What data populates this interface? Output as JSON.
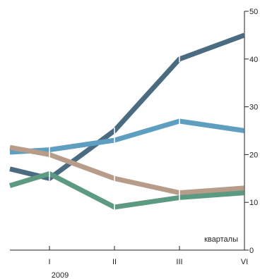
{
  "chart_data": {
    "type": "line",
    "x_categories": [
      "",
      "I",
      "II",
      "III",
      "VI"
    ],
    "x_year_label": "2009",
    "x_unit_label": "кварталы",
    "ylim": [
      0,
      50
    ],
    "y_ticks": [
      0,
      10,
      20,
      30,
      40,
      50
    ],
    "y_axis_position": "right",
    "grid": false,
    "legend": "none",
    "series": [
      {
        "color": "#4a6b80",
        "values": [
          17,
          15,
          25,
          40,
          45
        ]
      },
      {
        "color": "#5e9ec0",
        "values": [
          20.5,
          21,
          23,
          27,
          25
        ]
      },
      {
        "color": "#b89c8a",
        "values": [
          21.5,
          20,
          15,
          12,
          13
        ]
      },
      {
        "color": "#5d9a82",
        "values": [
          13.5,
          16,
          9,
          11,
          12
        ]
      }
    ]
  }
}
